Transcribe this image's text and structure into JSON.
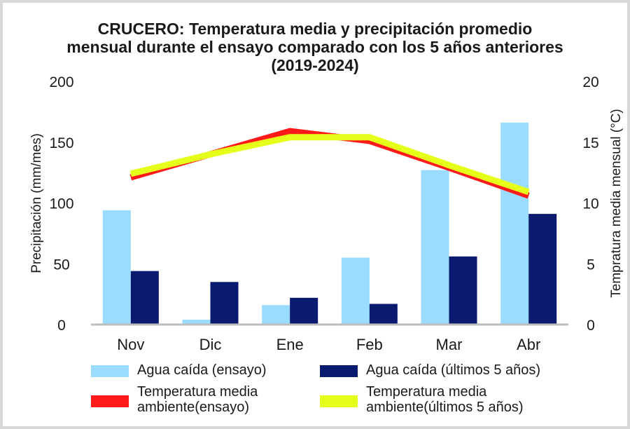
{
  "chart_data": {
    "type": "bar",
    "title": [
      "CRUCERO: Temperatura media y precipitación promedio",
      "mensual durante el ensayo comparado con los 5 años anteriores",
      "(2019-2024)"
    ],
    "categories": [
      "Nov",
      "Dic",
      "Ene",
      "Feb",
      "Mar",
      "Abr"
    ],
    "ylabel": "Precipitación (mm/mes)",
    "ylabel_right": "Tempratura media mensual (°C)",
    "ylim": [
      0,
      200
    ],
    "ylim_right": [
      0,
      20
    ],
    "yticks": [
      "0",
      "50",
      "100",
      "150",
      "200"
    ],
    "yticks_right": [
      "0",
      "5",
      "10",
      "15",
      "20"
    ],
    "grid": false,
    "legend_position": "bottom",
    "bar_series": [
      {
        "name": "Agua caída (ensayo)",
        "color": "#99dcff",
        "values": [
          94,
          4,
          16,
          55,
          127,
          166
        ]
      },
      {
        "name": "Agua caída (últimos 5 años)",
        "color": "#0a1a6e",
        "values": [
          44,
          35,
          22,
          17,
          56,
          91
        ]
      }
    ],
    "line_series": [
      {
        "name": "Temperatura media ambiente(ensayo)",
        "name_lines": [
          "Temperatura media",
          "ambiente(ensayo)"
        ],
        "color": "#ff1a1a",
        "values": [
          12.1,
          14.0,
          15.9,
          15.1,
          12.9,
          10.6
        ]
      },
      {
        "name": "Temperatura media ambiente(últimos 5 años)",
        "name_lines": [
          "Temperatura media",
          "ambiente(últimos 5 años)"
        ],
        "color": "#e6ff1a",
        "values": [
          12.4,
          14.0,
          15.4,
          15.4,
          13.1,
          10.9
        ]
      }
    ]
  }
}
